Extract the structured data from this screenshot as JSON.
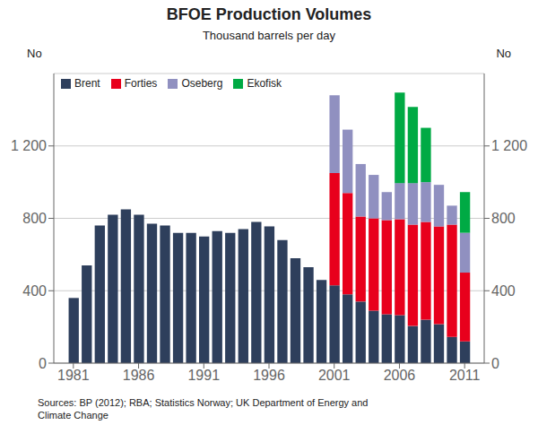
{
  "chart_data": {
    "type": "bar",
    "title": "BFOE Production Volumes",
    "subtitle": "Thousand barrels per day",
    "source": "Sources: BP (2012); RBA; Statistics Norway; UK Department of Energy and\nClimate Change",
    "y_label": "No",
    "y2_label": "No",
    "stacked": true,
    "grid": true,
    "legend": "upper left",
    "x": [
      1981,
      1982,
      1983,
      1984,
      1985,
      1986,
      1987,
      1988,
      1989,
      1990,
      1991,
      1992,
      1993,
      1994,
      1995,
      1996,
      1997,
      1998,
      1999,
      2000,
      2001,
      2002,
      2003,
      2004,
      2005,
      2006,
      2007,
      2008,
      2009,
      2010,
      2011
    ],
    "series": [
      {
        "name": "Brent",
        "color": "#2e3f5c",
        "values": [
          360,
          540,
          760,
          820,
          850,
          820,
          770,
          760,
          720,
          720,
          700,
          730,
          720,
          740,
          780,
          755,
          680,
          580,
          530,
          460,
          430,
          380,
          340,
          290,
          270,
          265,
          205,
          240,
          215,
          145,
          120
        ]
      },
      {
        "name": "Forties",
        "color": "#e8001c",
        "values": [
          0,
          0,
          0,
          0,
          0,
          0,
          0,
          0,
          0,
          0,
          0,
          0,
          0,
          0,
          0,
          0,
          0,
          0,
          0,
          0,
          620,
          560,
          470,
          510,
          520,
          530,
          560,
          540,
          540,
          620,
          380
        ]
      },
      {
        "name": "Oseberg",
        "color": "#9090c0",
        "values": [
          0,
          0,
          0,
          0,
          0,
          0,
          0,
          0,
          0,
          0,
          0,
          0,
          0,
          0,
          0,
          0,
          0,
          0,
          0,
          0,
          430,
          350,
          290,
          240,
          155,
          200,
          230,
          220,
          230,
          105,
          220
        ]
      },
      {
        "name": "Ekofisk",
        "color": "#00aa44",
        "values": [
          0,
          0,
          0,
          0,
          0,
          0,
          0,
          0,
          0,
          0,
          0,
          0,
          0,
          0,
          0,
          0,
          0,
          0,
          0,
          0,
          0,
          0,
          0,
          0,
          0,
          500,
          420,
          300,
          0,
          0,
          225
        ]
      }
    ],
    "xlim": [
      1979.5,
      2012.5
    ],
    "xticks": [
      1981,
      1986,
      1991,
      1996,
      2001,
      2006,
      2011
    ],
    "ylim": [
      0,
      1600
    ],
    "yticks": [
      0,
      400,
      800,
      {
        "value": 1200,
        "label": "1 200"
      }
    ],
    "y2lim": [
      0,
      1600
    ],
    "y2ticks": [
      0,
      400,
      800,
      {
        "value": 1200,
        "label": "1 200"
      }
    ]
  }
}
